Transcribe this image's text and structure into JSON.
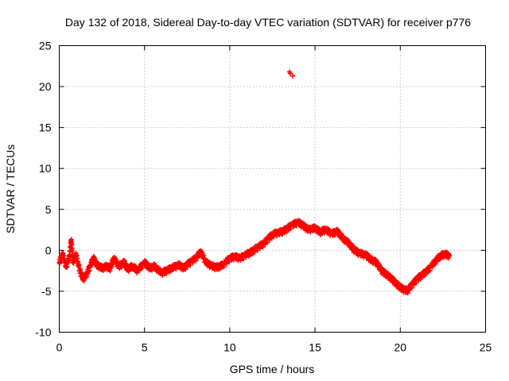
{
  "chart_data": {
    "type": "scatter",
    "title": "Day 132 of 2018, Sidereal Day-to-day VTEC variation (SDTVAR) for receiver p776",
    "xlabel": "GPS time / hours",
    "ylabel": "SDTVAR / TECUs",
    "xlim": [
      0,
      25
    ],
    "ylim": [
      -10,
      25
    ],
    "xticks": [
      0,
      5,
      10,
      15,
      20,
      25
    ],
    "yticks": [
      -10,
      -5,
      0,
      5,
      10,
      15,
      20,
      25
    ],
    "grid": true,
    "marker": "plus",
    "color": "#ff0000",
    "series": [
      {
        "name": "p776",
        "points": [
          [
            0.0,
            -1.5
          ],
          [
            0.2,
            -0.5
          ],
          [
            0.4,
            -2.0
          ],
          [
            0.6,
            -0.8
          ],
          [
            0.7,
            1.3
          ],
          [
            0.8,
            -1.5
          ],
          [
            1.0,
            -0.6
          ],
          [
            1.2,
            -2.5
          ],
          [
            1.4,
            -3.5
          ],
          [
            1.6,
            -3.0
          ],
          [
            1.8,
            -2.0
          ],
          [
            2.0,
            -1.0
          ],
          [
            2.2,
            -1.8
          ],
          [
            2.5,
            -2.2
          ],
          [
            2.8,
            -2.0
          ],
          [
            3.0,
            -2.2
          ],
          [
            3.2,
            -1.0
          ],
          [
            3.5,
            -2.0
          ],
          [
            3.8,
            -1.5
          ],
          [
            4.0,
            -2.3
          ],
          [
            4.3,
            -2.0
          ],
          [
            4.6,
            -2.5
          ],
          [
            5.0,
            -1.5
          ],
          [
            5.3,
            -2.2
          ],
          [
            5.6,
            -2.0
          ],
          [
            6.0,
            -2.8
          ],
          [
            6.3,
            -2.5
          ],
          [
            6.6,
            -2.2
          ],
          [
            7.0,
            -1.8
          ],
          [
            7.3,
            -2.2
          ],
          [
            7.6,
            -1.6
          ],
          [
            8.0,
            -1.0
          ],
          [
            8.3,
            -0.2
          ],
          [
            8.6,
            -1.5
          ],
          [
            9.0,
            -2.0
          ],
          [
            9.3,
            -2.1
          ],
          [
            9.6,
            -1.8
          ],
          [
            10.0,
            -1.0
          ],
          [
            10.3,
            -0.8
          ],
          [
            10.6,
            -1.0
          ],
          [
            11.0,
            -0.5
          ],
          [
            11.3,
            -0.2
          ],
          [
            11.6,
            0.3
          ],
          [
            12.0,
            0.8
          ],
          [
            12.3,
            1.5
          ],
          [
            12.6,
            2.0
          ],
          [
            13.0,
            2.2
          ],
          [
            13.3,
            2.5
          ],
          [
            13.6,
            3.0
          ],
          [
            14.0,
            3.4
          ],
          [
            14.3,
            3.0
          ],
          [
            14.6,
            2.5
          ],
          [
            15.0,
            2.7
          ],
          [
            15.3,
            2.2
          ],
          [
            15.6,
            2.5
          ],
          [
            16.0,
            2.0
          ],
          [
            16.3,
            2.3
          ],
          [
            16.6,
            1.5
          ],
          [
            17.0,
            0.8
          ],
          [
            17.3,
            0.0
          ],
          [
            17.6,
            -0.4
          ],
          [
            18.0,
            -0.6
          ],
          [
            18.3,
            -1.2
          ],
          [
            18.6,
            -1.5
          ],
          [
            18.9,
            -2.5
          ],
          [
            19.2,
            -3.0
          ],
          [
            19.5,
            -3.5
          ],
          [
            19.8,
            -4.2
          ],
          [
            20.1,
            -4.7
          ],
          [
            20.4,
            -5.0
          ],
          [
            20.7,
            -4.2
          ],
          [
            21.0,
            -3.5
          ],
          [
            21.3,
            -3.0
          ],
          [
            21.6,
            -2.5
          ],
          [
            22.0,
            -1.5
          ],
          [
            22.3,
            -0.8
          ],
          [
            22.6,
            -0.5
          ],
          [
            22.9,
            -0.7
          ],
          [
            13.5,
            21.8
          ],
          [
            13.7,
            21.3
          ],
          [
            13.55,
            21.6
          ]
        ]
      }
    ]
  }
}
